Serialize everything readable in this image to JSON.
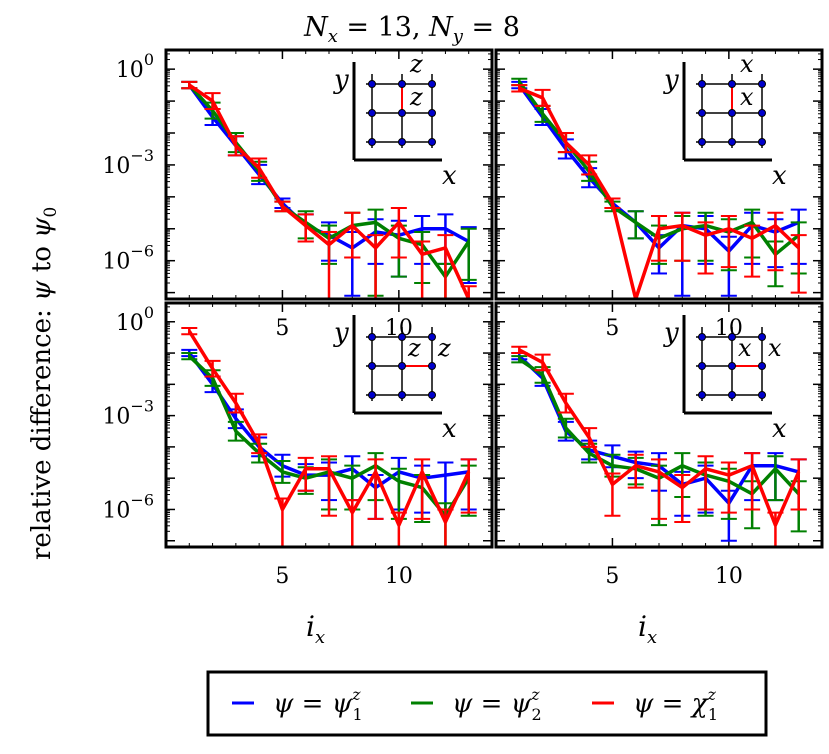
{
  "figure": {
    "title_parts": [
      "N",
      "x",
      " = 13, ",
      "N",
      "y",
      " = 8"
    ],
    "ylabel_text": "relative difference: ",
    "ylabel_psi": "ψ",
    "ylabel_to": " to ",
    "ylabel_psi0": "ψ",
    "ylabel_psi0_sub": "0",
    "xlabel_main": "i",
    "xlabel_sub": "x"
  },
  "legend": {
    "entries": [
      {
        "lhs": "ψ",
        "eq": " = ",
        "rhs": "ψ",
        "sub": "1",
        "sup": "z",
        "color": "#0000ff"
      },
      {
        "lhs": "ψ",
        "eq": " = ",
        "rhs": "ψ",
        "sub": "2",
        "sup": "z",
        "color": "#008000"
      },
      {
        "lhs": "ψ",
        "eq": " = ",
        "rhs": "χ",
        "sub": "1",
        "sup": "z",
        "color": "#ff0000"
      }
    ]
  },
  "chart_data": [
    {
      "type": "line",
      "panel": "top-left",
      "inset": {
        "label_left": "z",
        "label_right": "z",
        "axis_x": "x",
        "axis_y": "y",
        "arrangement": "vertical"
      },
      "x": [
        1,
        2,
        3,
        4,
        5,
        6,
        7,
        8,
        9,
        10,
        11,
        12,
        13
      ],
      "xticks": [
        5,
        10
      ],
      "yticks": [
        "10^0",
        "10^-3",
        "10^-6"
      ],
      "xlim": [
        0,
        14
      ],
      "ylim_log10": [
        -7.2,
        0.6
      ],
      "series": [
        {
          "name": "blue",
          "color": "#0000ff",
          "log10": [
            -0.5,
            -1.5,
            -2.4,
            -3.3,
            -4.2,
            -4.9,
            -5.2,
            -5.6,
            -5.1,
            -5.2,
            -5.0,
            -5.0,
            -5.4
          ],
          "err_hi": [
            0.1,
            0.25,
            0.3,
            0.3,
            0.15,
            0.35,
            0.4,
            0.5,
            0.4,
            0.45,
            0.4,
            0.45,
            0.45
          ],
          "err_lo": [
            0.1,
            0.25,
            0.3,
            0.3,
            0.15,
            0.5,
            0.8,
            1.5,
            1.0,
            1.3,
            1.1,
            1.1,
            1.3
          ]
        },
        {
          "name": "green",
          "color": "#008000",
          "log10": [
            -0.5,
            -1.3,
            -2.3,
            -3.2,
            -4.3,
            -4.8,
            -5.3,
            -4.9,
            -4.8,
            -5.3,
            -5.5,
            -6.5,
            -5.4
          ],
          "err_hi": [
            0.1,
            0.25,
            0.3,
            0.3,
            0.15,
            0.35,
            0.4,
            0.4,
            0.4,
            0.4,
            0.4,
            0.4,
            0.4
          ],
          "err_lo": [
            0.1,
            0.25,
            0.3,
            0.3,
            0.15,
            0.5,
            0.8,
            1.0,
            2.3,
            1.2,
            1.2,
            1.0,
            1.2
          ]
        },
        {
          "name": "red",
          "color": "#ff0000",
          "log10": [
            -0.5,
            -1.0,
            -2.4,
            -3.1,
            -4.3,
            -4.9,
            -5.5,
            -4.9,
            -5.6,
            -4.8,
            -5.8,
            -5.6,
            -7.2
          ],
          "err_hi": [
            0.1,
            0.25,
            0.3,
            0.3,
            0.15,
            0.35,
            0.4,
            0.4,
            0.4,
            0.45,
            0.4,
            0.4,
            0.4
          ],
          "err_lo": [
            0.1,
            0.25,
            0.3,
            0.3,
            0.15,
            0.5,
            1.7,
            1.0,
            1.6,
            1.1,
            1.4,
            1.6,
            0.0
          ]
        }
      ]
    },
    {
      "type": "line",
      "panel": "top-right",
      "inset": {
        "label_left": "x",
        "label_right": "x",
        "axis_x": "x",
        "axis_y": "y",
        "arrangement": "vertical"
      },
      "x": [
        1,
        2,
        3,
        4,
        5,
        6,
        7,
        8,
        9,
        10,
        11,
        12,
        13
      ],
      "xticks": [
        5,
        10
      ],
      "yticks": [],
      "xlim": [
        0,
        14
      ],
      "ylim_log10": [
        -7.2,
        0.6
      ],
      "series": [
        {
          "name": "blue",
          "color": "#0000ff",
          "log10": [
            -0.5,
            -1.5,
            -2.5,
            -3.4,
            -4.2,
            -4.8,
            -5.6,
            -4.9,
            -5.0,
            -5.7,
            -4.9,
            -5.1,
            -4.8
          ],
          "err_hi": [
            0.1,
            0.25,
            0.3,
            0.3,
            0.15,
            0.35,
            0.4,
            0.4,
            0.4,
            0.45,
            0.4,
            0.4,
            0.4
          ],
          "err_lo": [
            0.1,
            0.25,
            0.3,
            0.3,
            0.15,
            0.5,
            0.8,
            2.2,
            1.1,
            1.4,
            1.2,
            1.1,
            1.3
          ]
        },
        {
          "name": "green",
          "color": "#008000",
          "log10": [
            -0.4,
            -1.4,
            -2.3,
            -3.2,
            -4.3,
            -4.8,
            -5.3,
            -5.0,
            -4.9,
            -5.1,
            -4.8,
            -5.8,
            -5.2
          ],
          "err_hi": [
            0.1,
            0.25,
            0.3,
            0.3,
            0.15,
            0.35,
            0.4,
            0.4,
            0.4,
            0.4,
            0.4,
            0.4,
            0.4
          ],
          "err_lo": [
            0.1,
            0.25,
            0.3,
            0.3,
            0.15,
            0.5,
            0.8,
            1.0,
            1.1,
            1.2,
            1.1,
            1.0,
            1.2
          ]
        },
        {
          "name": "red",
          "color": "#ff0000",
          "log10": [
            -0.6,
            -0.9,
            -2.3,
            -3.0,
            -4.2,
            -7.2,
            -5.0,
            -4.9,
            -5.2,
            -5.0,
            -5.3,
            -4.9,
            -5.6
          ],
          "err_hi": [
            0.1,
            0.25,
            0.3,
            0.3,
            0.15,
            0.0,
            0.4,
            0.4,
            0.4,
            0.4,
            0.4,
            0.4,
            0.4
          ],
          "err_lo": [
            0.1,
            0.25,
            0.3,
            0.3,
            0.15,
            0.0,
            1.0,
            1.1,
            1.2,
            1.2,
            1.2,
            1.4,
            1.4
          ]
        }
      ]
    },
    {
      "type": "line",
      "panel": "bottom-left",
      "inset": {
        "label_left": "z",
        "label_right": "z",
        "axis_x": "x",
        "axis_y": "y",
        "arrangement": "horizontal"
      },
      "x": [
        1,
        2,
        3,
        4,
        5,
        6,
        7,
        8,
        9,
        10,
        11,
        12,
        13
      ],
      "xticks": [
        5,
        10
      ],
      "yticks": [
        "10^0",
        "10^-3",
        "10^-6"
      ],
      "xlim": [
        0,
        14
      ],
      "ylim_log10": [
        -7.2,
        0.6
      ],
      "series": [
        {
          "name": "blue",
          "color": "#0000ff",
          "log10": [
            -1.0,
            -2.0,
            -3.1,
            -4.0,
            -4.6,
            -4.9,
            -4.9,
            -4.7,
            -5.3,
            -4.8,
            -5.0,
            -4.9,
            -4.8
          ],
          "err_hi": [
            0.1,
            0.25,
            0.3,
            0.3,
            0.35,
            0.35,
            0.4,
            0.4,
            0.4,
            0.45,
            0.4,
            0.4,
            0.4
          ],
          "err_lo": [
            0.1,
            0.25,
            0.3,
            0.3,
            0.35,
            0.5,
            0.8,
            1.0,
            1.0,
            1.2,
            1.1,
            1.1,
            1.2
          ]
        },
        {
          "name": "green",
          "color": "#008000",
          "log10": [
            -1.1,
            -1.8,
            -3.5,
            -4.2,
            -4.8,
            -5.0,
            -4.8,
            -5.0,
            -4.6,
            -5.1,
            -5.3,
            -6.2,
            -5.0
          ],
          "err_hi": [
            0.1,
            0.25,
            0.3,
            0.3,
            0.35,
            0.35,
            0.4,
            0.4,
            0.4,
            0.4,
            0.4,
            0.4,
            0.4
          ],
          "err_lo": [
            0.1,
            0.25,
            0.3,
            0.3,
            0.35,
            0.5,
            1.2,
            1.0,
            1.1,
            1.2,
            1.1,
            1.0,
            1.2
          ]
        },
        {
          "name": "red",
          "color": "#ff0000",
          "log10": [
            -0.3,
            -1.5,
            -2.6,
            -3.9,
            -6.0,
            -4.7,
            -4.7,
            -6.1,
            -4.8,
            -6.5,
            -4.8,
            -6.4,
            -4.8
          ],
          "err_hi": [
            0.1,
            0.25,
            0.3,
            0.3,
            0.35,
            0.35,
            0.4,
            0.4,
            0.4,
            0.4,
            0.4,
            0.4,
            0.4
          ],
          "err_lo": [
            0.1,
            0.25,
            0.3,
            0.3,
            1.2,
            0.7,
            1.5,
            1.1,
            1.5,
            0.7,
            1.5,
            0.8,
            1.3
          ]
        }
      ]
    },
    {
      "type": "line",
      "panel": "bottom-right",
      "inset": {
        "label_left": "x",
        "label_right": "x",
        "axis_x": "x",
        "axis_y": "y",
        "arrangement": "horizontal"
      },
      "x": [
        1,
        2,
        3,
        4,
        5,
        6,
        7,
        8,
        9,
        10,
        11,
        12,
        13
      ],
      "xticks": [
        5,
        10
      ],
      "yticks": [],
      "xlim": [
        0,
        14
      ],
      "ylim_log10": [
        -7.2,
        0.6
      ],
      "series": [
        {
          "name": "blue",
          "color": "#0000ff",
          "log10": [
            -1.1,
            -1.8,
            -3.5,
            -4.1,
            -4.3,
            -4.5,
            -4.6,
            -5.2,
            -5.0,
            -5.8,
            -4.6,
            -4.6,
            -4.8
          ],
          "err_hi": [
            0.1,
            0.25,
            0.3,
            0.3,
            0.35,
            0.35,
            0.4,
            0.4,
            0.4,
            0.4,
            0.4,
            0.4,
            0.4
          ],
          "err_lo": [
            0.1,
            0.25,
            0.3,
            0.3,
            0.35,
            0.5,
            0.8,
            1.0,
            1.1,
            1.2,
            1.1,
            1.1,
            1.2
          ]
        },
        {
          "name": "green",
          "color": "#008000",
          "log10": [
            -1.2,
            -1.7,
            -3.4,
            -4.2,
            -4.6,
            -4.7,
            -5.0,
            -4.6,
            -4.9,
            -5.1,
            -5.5,
            -4.7,
            -5.5
          ],
          "err_hi": [
            0.1,
            0.25,
            0.3,
            0.3,
            0.35,
            0.35,
            0.4,
            0.4,
            0.4,
            0.4,
            0.4,
            0.4,
            0.4
          ],
          "err_lo": [
            0.1,
            0.25,
            0.3,
            0.3,
            0.35,
            0.5,
            1.5,
            1.0,
            1.3,
            1.2,
            1.1,
            1.0,
            1.2
          ]
        },
        {
          "name": "red",
          "color": "#ff0000",
          "log10": [
            -0.9,
            -1.3,
            -2.6,
            -3.7,
            -5.2,
            -4.6,
            -4.8,
            -5.3,
            -4.7,
            -4.9,
            -4.6,
            -6.5,
            -4.8
          ],
          "err_hi": [
            0.1,
            0.25,
            0.3,
            0.3,
            0.35,
            0.35,
            0.4,
            0.4,
            0.4,
            0.4,
            0.4,
            0.4,
            0.4
          ],
          "err_lo": [
            0.1,
            0.25,
            0.3,
            0.3,
            1.0,
            0.7,
            1.5,
            1.1,
            1.3,
            1.2,
            1.4,
            0.7,
            1.2
          ]
        }
      ]
    }
  ]
}
